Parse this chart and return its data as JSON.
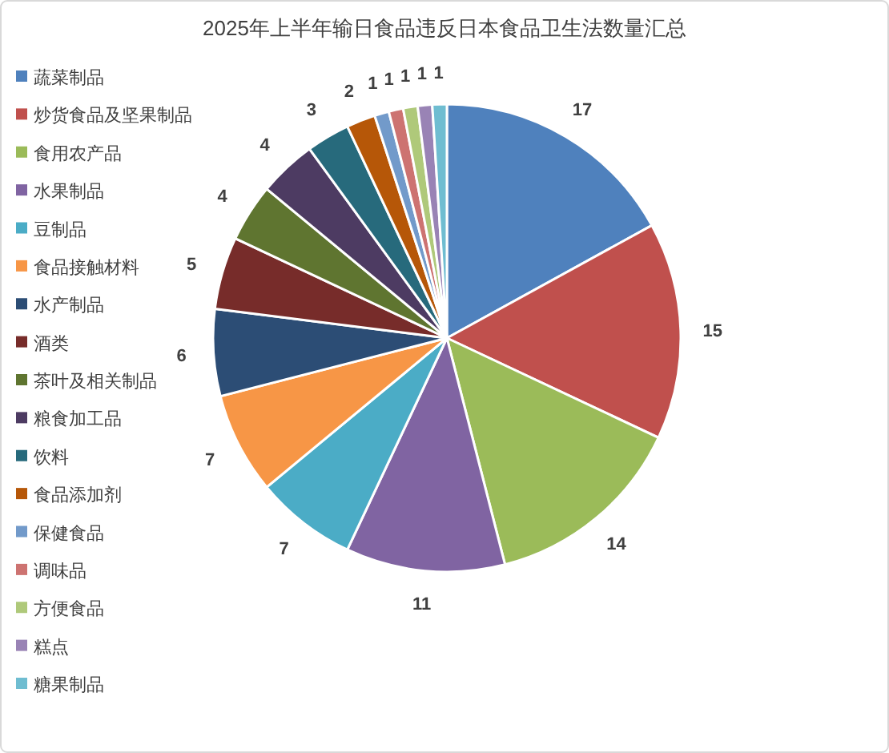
{
  "chart_data": {
    "type": "pie",
    "title": "2025年上半年输日食品违反日本食品卫生法数量汇总",
    "categories": [
      "蔬菜制品",
      "炒货食品及坚果制品",
      "食用农产品",
      "水果制品",
      "豆制品",
      "食品接触材料",
      "水产制品",
      "酒类",
      "茶叶及相关制品",
      "粮食加工品",
      "饮料",
      "食品添加剂",
      "保健食品",
      "调味品",
      "方便食品",
      "糕点",
      "糖果制品"
    ],
    "values": [
      17,
      15,
      14,
      11,
      7,
      7,
      6,
      5,
      4,
      4,
      3,
      2,
      1,
      1,
      1,
      1,
      1
    ],
    "colors": [
      "#4f81bd",
      "#c0504d",
      "#9bbb59",
      "#8064a2",
      "#4bacc6",
      "#f79646",
      "#2c4d75",
      "#772c2a",
      "#5f7530",
      "#4d3b62",
      "#276a7c",
      "#b65708",
      "#729aca",
      "#cd7371",
      "#afc97a",
      "#9983b5",
      "#6fbdd1"
    ],
    "data_labels": true,
    "legend": "left"
  }
}
